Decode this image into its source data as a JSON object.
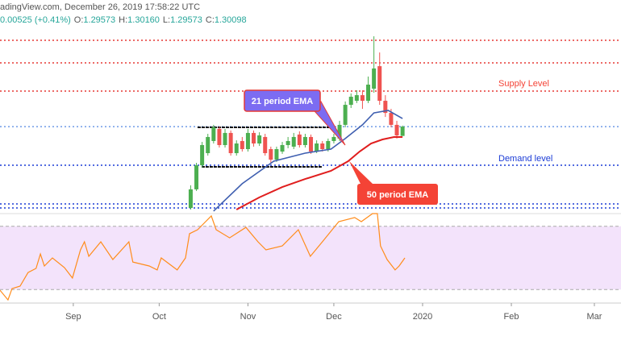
{
  "header": {
    "source": "adingView.com, December 26, 2019 17:58:22 UTC",
    "change": "0.00525 (+0.41%)",
    "ohlc": [
      {
        "label": "O:",
        "value": "1.29573"
      },
      {
        "label": "H:",
        "value": "1.30160"
      },
      {
        "label": "L:",
        "value": "1.29573"
      },
      {
        "label": "C:",
        "value": "1.30098"
      }
    ]
  },
  "chart_data": [
    {
      "type": "candlestick",
      "up_color": "#4caf50",
      "down_color": "#ef5350",
      "xlim": [
        -25.6,
        191.3
      ],
      "ylim": [
        1.2515,
        1.3593
      ],
      "x": [
        41,
        43,
        45,
        47,
        49,
        51,
        53,
        55,
        57,
        59,
        61,
        63,
        65,
        67,
        69,
        71,
        73,
        75,
        77,
        79,
        81,
        83,
        85,
        87,
        89,
        91,
        93,
        95,
        97,
        99,
        101,
        103,
        105,
        107,
        109,
        111,
        113,
        115
      ],
      "open": [
        1.2547,
        1.2653,
        1.279,
        1.2859,
        1.2928,
        1.2997,
        1.2905,
        1.2974,
        1.2859,
        1.2928,
        1.2882,
        1.2974,
        1.2914,
        1.2951,
        1.2882,
        1.2822,
        1.2868,
        1.2905,
        1.2896,
        1.2965,
        1.2905,
        1.2951,
        1.2868,
        1.2914,
        1.2882,
        1.2928,
        1.2942,
        1.302,
        1.3134,
        1.3157,
        1.3189,
        1.3157,
        1.3226,
        1.3354,
        1.3157,
        1.3088,
        1.302,
        1.2957
      ],
      "high": [
        1.2676,
        1.2804,
        1.2923,
        1.2969,
        1.302,
        1.301,
        1.2997,
        1.2988,
        1.2932,
        1.2951,
        1.2997,
        1.2988,
        1.2978,
        1.2969,
        1.2896,
        1.2896,
        1.2923,
        1.2951,
        1.2974,
        1.2983,
        1.2969,
        1.2965,
        1.2932,
        1.2928,
        1.2942,
        1.2969,
        1.3043,
        1.3153,
        1.3199,
        1.3217,
        1.3217,
        1.3295,
        1.3524,
        1.3432,
        1.3189,
        1.3111,
        1.3043,
        1.3016
      ],
      "low": [
        1.2538,
        1.2644,
        1.2777,
        1.2845,
        1.2914,
        1.2891,
        1.2891,
        1.2845,
        1.2845,
        1.2868,
        1.2868,
        1.2896,
        1.29,
        1.2845,
        1.2804,
        1.2809,
        1.2855,
        1.2887,
        1.2882,
        1.2891,
        1.2891,
        1.2855,
        1.2859,
        1.2868,
        1.2868,
        1.2914,
        1.2928,
        1.3006,
        1.3116,
        1.3144,
        1.3111,
        1.3144,
        1.3203,
        1.3134,
        1.3065,
        1.3006,
        1.2942,
        1.2957
      ],
      "close": [
        1.2653,
        1.279,
        1.2905,
        1.2951,
        1.3006,
        1.2905,
        1.2974,
        1.2859,
        1.2914,
        1.2882,
        1.2974,
        1.2914,
        1.296,
        1.2859,
        1.2822,
        1.2882,
        1.2905,
        1.2928,
        1.2951,
        1.2905,
        1.2951,
        1.2868,
        1.2914,
        1.2882,
        1.2928,
        1.2951,
        1.302,
        1.3134,
        1.318,
        1.3189,
        1.3157,
        1.3249,
        1.3341,
        1.3157,
        1.3088,
        1.302,
        1.296,
        1.301
      ],
      "series": [
        {
          "name": "21 period EMA",
          "color": "#3f5fb0",
          "box_color": "#7c6cf2",
          "x": [
            49,
            59,
            70,
            81,
            90,
            95,
            101,
            105,
            110,
            115
          ],
          "values": [
            1.2529,
            1.2685,
            1.2813,
            1.2859,
            1.2882,
            1.2942,
            1.302,
            1.3088,
            1.3102,
            1.3056
          ]
        },
        {
          "name": "50 period EMA",
          "color": "#e01e1e",
          "box_color": "#f44336",
          "x": [
            57,
            65,
            73,
            81,
            90,
            96,
            100,
            104,
            108,
            112,
            115
          ],
          "values": [
            1.2538,
            1.2607,
            1.2666,
            1.2712,
            1.2758,
            1.2813,
            1.2868,
            1.2914,
            1.2937,
            1.2951,
            1.2951
          ]
        }
      ],
      "levels": [
        {
          "value": 1.3501,
          "color": "#e53935"
        },
        {
          "value": 1.3373,
          "color": "#e53935"
        },
        {
          "value": 1.3212,
          "color": "#e53935"
        },
        {
          "value": 1.301,
          "color": "#6f9be8"
        },
        {
          "value": 1.279,
          "color": "#1a3bd6"
        },
        {
          "value": 1.257,
          "color": "#1a3bd6"
        },
        {
          "value": 1.2547,
          "color": "#1a3bd6"
        }
      ],
      "segments": [
        {
          "value": 1.3006,
          "x": [
            43.4,
            89.9
          ]
        },
        {
          "value": 1.2781,
          "x": [
            44.8,
            87
          ]
        }
      ],
      "annotations": [
        {
          "text": "Supply Level",
          "color": "#f44336"
        },
        {
          "text": "Demand level",
          "color": "#1a3bd6"
        }
      ]
    },
    {
      "type": "line",
      "color": "#ff8c1a",
      "band_color": "#f3e3fb",
      "xlim": [
        -25.6,
        191.3
      ],
      "ylim": [
        22,
        78
      ],
      "bands": [
        30,
        70
      ],
      "x": [
        -25.6,
        -22.8,
        -21.4,
        -18.6,
        -15.8,
        -13,
        -11.5,
        -10.1,
        -7.3,
        -3.1,
        -0.3,
        2.5,
        3.9,
        5.4,
        9.6,
        13.8,
        19.4,
        20.8,
        26.5,
        29.3,
        30.7,
        36.3,
        39.2,
        40.6,
        43.4,
        48.2,
        49.9,
        54.6,
        60.3,
        64.5,
        67.3,
        73,
        78.6,
        82.8,
        87,
        92.7,
        98.3,
        100.6,
        104.5,
        106.2,
        107.3,
        109.6,
        112.4,
        113.8,
        115.8
      ],
      "values": [
        29.6,
        23.5,
        30.6,
        32.2,
        40.8,
        43.4,
        52.5,
        44.9,
        50,
        43.9,
        37.3,
        55.1,
        60.2,
        51,
        60.2,
        49,
        60.2,
        47.4,
        44.9,
        42.4,
        50,
        42.4,
        50,
        65.3,
        67.8,
        76.5,
        67.8,
        62.7,
        69.3,
        60.2,
        55.1,
        57.6,
        67.8,
        51,
        60.2,
        72.9,
        75.5,
        72.9,
        78,
        78,
        57.6,
        49,
        42.4,
        44.9,
        50
      ],
      "xticks": [
        {
          "value": 0,
          "label": "Sep"
        },
        {
          "value": 30,
          "label": "Oct"
        },
        {
          "value": 61,
          "label": "Nov"
        },
        {
          "value": 91,
          "label": "Dec"
        },
        {
          "value": 122,
          "label": "2020"
        },
        {
          "value": 153,
          "label": "Feb"
        },
        {
          "value": 182,
          "label": "Mar"
        }
      ]
    }
  ]
}
